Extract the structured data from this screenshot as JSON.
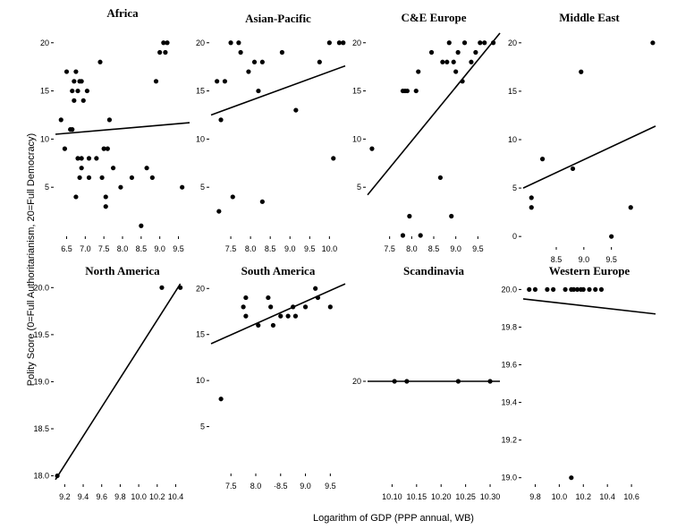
{
  "figure": {
    "xlabel": "Logarithm of GDP (PPP annual, WB)",
    "ylabel": "Polity Score (0=Full Authoritarianism, 20=Full Democracy)"
  },
  "chart_data": [
    {
      "type": "scatter",
      "title": "Africa",
      "xlim": [
        6.2,
        9.8
      ],
      "ylim": [
        0,
        21
      ],
      "xticks": [
        6.5,
        7.0,
        7.5,
        8.0,
        8.5,
        9.0,
        9.5
      ],
      "xtick_labels": [
        "6.5",
        "7.0",
        "7.5",
        "8.0",
        "8.5",
        "9.0",
        "9.5"
      ],
      "yticks": [
        5,
        10,
        15,
        20
      ],
      "ytick_labels": [
        "5",
        "10",
        "15",
        "20"
      ],
      "points": [
        [
          6.35,
          12
        ],
        [
          6.45,
          9
        ],
        [
          6.5,
          17
        ],
        [
          6.6,
          11
        ],
        [
          6.65,
          15
        ],
        [
          6.65,
          11
        ],
        [
          6.7,
          14
        ],
        [
          6.7,
          16
        ],
        [
          6.75,
          17
        ],
        [
          6.75,
          4
        ],
        [
          6.8,
          15
        ],
        [
          6.8,
          8
        ],
        [
          6.85,
          16
        ],
        [
          6.85,
          6
        ],
        [
          6.9,
          16
        ],
        [
          6.9,
          8
        ],
        [
          6.9,
          7
        ],
        [
          6.95,
          14
        ],
        [
          7.05,
          15
        ],
        [
          7.1,
          6
        ],
        [
          7.1,
          8
        ],
        [
          7.3,
          8
        ],
        [
          7.4,
          18
        ],
        [
          7.45,
          6
        ],
        [
          7.5,
          9
        ],
        [
          7.55,
          4
        ],
        [
          7.55,
          3
        ],
        [
          7.6,
          9
        ],
        [
          7.65,
          12
        ],
        [
          7.75,
          7
        ],
        [
          7.95,
          5
        ],
        [
          8.25,
          6
        ],
        [
          8.5,
          1
        ],
        [
          8.65,
          7
        ],
        [
          8.8,
          6
        ],
        [
          8.9,
          16
        ],
        [
          9.0,
          19
        ],
        [
          9.1,
          20
        ],
        [
          9.15,
          19
        ],
        [
          9.2,
          20
        ],
        [
          9.6,
          5
        ]
      ],
      "trend": [
        [
          6.2,
          10.5
        ],
        [
          9.8,
          11.7
        ]
      ]
    },
    {
      "type": "scatter",
      "title": "Asian-Pacific",
      "xlim": [
        7.0,
        10.4
      ],
      "ylim": [
        0,
        21
      ],
      "xticks": [
        7.5,
        8.0,
        8.5,
        9.0,
        9.5,
        10.0
      ],
      "xtick_labels": [
        "7.5",
        "8.0",
        "8.5",
        "9.0",
        "9.5",
        "10.0"
      ],
      "yticks": [
        5,
        10,
        15,
        20
      ],
      "ytick_labels": [
        "5",
        "10",
        "15",
        "20"
      ],
      "points": [
        [
          7.15,
          16
        ],
        [
          7.2,
          2.5
        ],
        [
          7.25,
          12
        ],
        [
          7.35,
          16
        ],
        [
          7.5,
          20
        ],
        [
          7.55,
          4
        ],
        [
          7.7,
          20
        ],
        [
          7.75,
          19
        ],
        [
          7.95,
          17
        ],
        [
          8.1,
          18
        ],
        [
          8.2,
          15
        ],
        [
          8.3,
          18
        ],
        [
          8.3,
          3.5
        ],
        [
          8.8,
          19
        ],
        [
          9.15,
          13
        ],
        [
          9.75,
          18
        ],
        [
          10.0,
          20
        ],
        [
          10.1,
          8
        ],
        [
          10.25,
          20
        ],
        [
          10.35,
          20
        ]
      ],
      "trend": [
        [
          7.0,
          12.5
        ],
        [
          10.4,
          17.6
        ]
      ]
    },
    {
      "type": "scatter",
      "title": "C&E Europe",
      "xlim": [
        7.0,
        10.0
      ],
      "ylim": [
        0,
        21
      ],
      "xticks": [
        7.5,
        8.0,
        8.5,
        9.0,
        9.5
      ],
      "xtick_labels": [
        "7.5",
        "8.0",
        "8.5",
        "9.0",
        "9.5"
      ],
      "yticks": [
        5,
        10,
        15,
        20
      ],
      "ytick_labels": [
        "5",
        "10",
        "15",
        "20"
      ],
      "points": [
        [
          7.1,
          9
        ],
        [
          7.8,
          0
        ],
        [
          7.8,
          15
        ],
        [
          7.85,
          15
        ],
        [
          7.9,
          15
        ],
        [
          7.95,
          2
        ],
        [
          8.1,
          15
        ],
        [
          8.15,
          17
        ],
        [
          8.2,
          0
        ],
        [
          8.45,
          19
        ],
        [
          8.65,
          6
        ],
        [
          8.7,
          18
        ],
        [
          8.8,
          18
        ],
        [
          8.85,
          20
        ],
        [
          8.9,
          2
        ],
        [
          8.95,
          18
        ],
        [
          9.0,
          17
        ],
        [
          9.05,
          19
        ],
        [
          9.15,
          16
        ],
        [
          9.2,
          20
        ],
        [
          9.35,
          18
        ],
        [
          9.45,
          19
        ],
        [
          9.55,
          20
        ],
        [
          9.65,
          20
        ],
        [
          9.85,
          20
        ]
      ],
      "trend": [
        [
          7.0,
          4.2
        ],
        [
          10.0,
          21
        ]
      ]
    },
    {
      "type": "scatter",
      "title": "Middle East",
      "xlim": [
        7.9,
        10.3
      ],
      "ylim": [
        -1,
        21
      ],
      "xticks": [
        8.5,
        9.0,
        9.5
      ],
      "xtick_labels": [
        "8.5",
        "9.0",
        "9.5"
      ],
      "yticks": [
        0,
        5,
        10,
        15,
        20
      ],
      "ytick_labels": [
        "0",
        "5",
        "10",
        "15",
        "20"
      ],
      "points": [
        [
          8.05,
          4
        ],
        [
          8.05,
          3
        ],
        [
          8.25,
          8
        ],
        [
          8.8,
          7
        ],
        [
          8.95,
          17
        ],
        [
          9.5,
          0
        ],
        [
          9.85,
          3
        ],
        [
          10.25,
          20
        ]
      ],
      "trend": [
        [
          7.9,
          5
        ],
        [
          10.3,
          11.4
        ]
      ]
    },
    {
      "type": "scatter",
      "title": "North America",
      "xlim": [
        9.1,
        10.55
      ],
      "ylim": [
        17.92,
        20.06
      ],
      "xticks": [
        9.2,
        9.4,
        9.6,
        9.8,
        10.0,
        10.2,
        10.4
      ],
      "xtick_labels": [
        "9.2",
        "9.4",
        "9.6",
        "9.8",
        "10.0",
        "10.2",
        "10.4"
      ],
      "yticks": [
        18.0,
        18.5,
        19.0,
        19.5,
        20.0
      ],
      "ytick_labels": [
        "18.0",
        "18.5",
        "19.0",
        "19.5",
        "20.0"
      ],
      "points": [
        [
          9.12,
          18.0
        ],
        [
          10.25,
          20.0
        ],
        [
          10.45,
          20.0
        ]
      ],
      "trend": [
        [
          9.1,
          17.96
        ],
        [
          10.45,
          20.04
        ]
      ]
    },
    {
      "type": "scatter",
      "title": "South America",
      "xlim": [
        7.1,
        9.8
      ],
      "ylim": [
        0,
        21
      ],
      "xticks": [
        7.5,
        8.0,
        8.5,
        9.0,
        9.5
      ],
      "xtick_labels": [
        "7.5",
        "8.0",
        "·8.5",
        "9.0",
        "9.5"
      ],
      "yticks": [
        5,
        10,
        15,
        20
      ],
      "ytick_labels": [
        "5",
        "10",
        "15",
        "20"
      ],
      "points": [
        [
          7.3,
          8
        ],
        [
          7.75,
          18
        ],
        [
          7.8,
          19
        ],
        [
          7.8,
          17
        ],
        [
          8.05,
          16
        ],
        [
          8.25,
          19
        ],
        [
          8.3,
          18
        ],
        [
          8.35,
          16
        ],
        [
          8.5,
          17
        ],
        [
          8.65,
          17
        ],
        [
          8.75,
          18
        ],
        [
          8.8,
          17
        ],
        [
          9.0,
          18
        ],
        [
          9.2,
          20
        ],
        [
          9.25,
          19
        ],
        [
          9.5,
          18
        ]
      ],
      "trend": [
        [
          7.1,
          14
        ],
        [
          9.8,
          20.5
        ]
      ]
    },
    {
      "type": "scatter",
      "title": "Scandinavia",
      "xlim": [
        10.05,
        10.32
      ],
      "ylim": [
        0,
        40
      ],
      "xticks": [
        10.1,
        10.15,
        10.2,
        10.25,
        10.3
      ],
      "xtick_labels": [
        "10.10",
        "10.15",
        "10.20",
        "10.25",
        "10.30"
      ],
      "yticks": [
        20
      ],
      "ytick_labels": [
        "20"
      ],
      "points": [
        [
          10.105,
          20
        ],
        [
          10.13,
          20
        ],
        [
          10.235,
          20
        ],
        [
          10.3,
          20
        ]
      ],
      "trend": [
        [
          10.05,
          20
        ],
        [
          10.32,
          20
        ]
      ]
    },
    {
      "type": "scatter",
      "title": "Western Europe",
      "xlim": [
        9.7,
        10.8
      ],
      "ylim": [
        18.97,
        20.04
      ],
      "xticks": [
        9.8,
        10.0,
        10.2,
        10.4,
        10.6
      ],
      "xtick_labels": [
        "9.8",
        "10.0",
        "10.2",
        "10.4",
        "10.6"
      ],
      "yticks": [
        19.0,
        19.2,
        19.4,
        19.6,
        19.8,
        20.0
      ],
      "ytick_labels": [
        "19.0",
        "19.2",
        "19.4",
        "19.6",
        "19.8",
        "20.0"
      ],
      "points": [
        [
          9.75,
          20.0
        ],
        [
          9.8,
          20.0
        ],
        [
          9.9,
          20.0
        ],
        [
          9.95,
          20.0
        ],
        [
          10.05,
          20.0
        ],
        [
          10.1,
          20.0
        ],
        [
          10.12,
          20.0
        ],
        [
          10.15,
          20.0
        ],
        [
          10.18,
          20.0
        ],
        [
          10.2,
          20.0
        ],
        [
          10.25,
          20.0
        ],
        [
          10.3,
          20.0
        ],
        [
          10.35,
          20.0
        ],
        [
          10.1,
          19.0
        ]
      ],
      "trend": [
        [
          9.7,
          19.95
        ],
        [
          10.8,
          19.87
        ]
      ]
    }
  ]
}
